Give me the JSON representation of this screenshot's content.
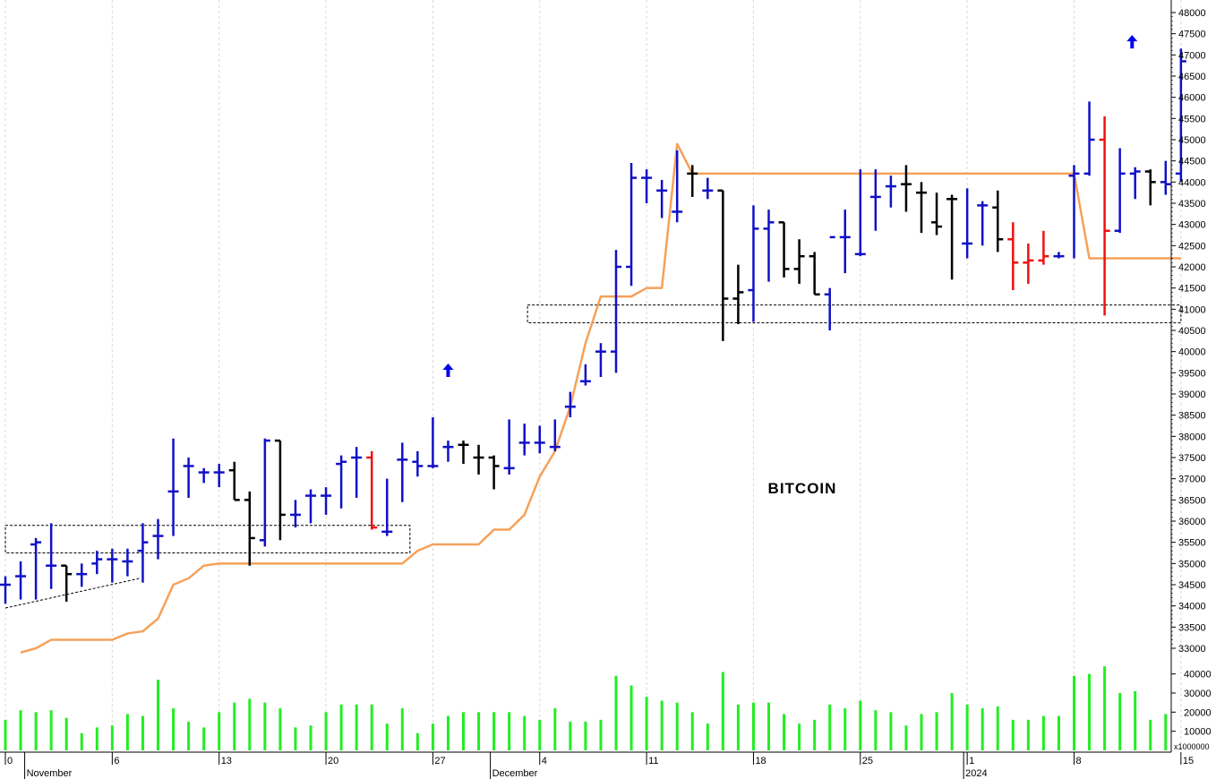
{
  "chart_data": {
    "type": "bar",
    "title": "BITCOIN",
    "ohlc_series_name": "",
    "price_axis": {
      "ylim": [
        32500,
        48000
      ],
      "ticks": [
        33000,
        33500,
        34000,
        34500,
        35000,
        35500,
        36000,
        36500,
        37000,
        37500,
        38000,
        38500,
        39000,
        39500,
        40000,
        40500,
        41000,
        41500,
        42000,
        42500,
        43000,
        43500,
        44000,
        44500,
        45000,
        45500,
        46000,
        46500,
        47000,
        47500,
        48000
      ],
      "tick_labels": [
        "33000",
        "33500",
        "34000",
        "34500",
        "35000",
        "35500",
        "36000",
        "36500",
        "37000",
        "37500",
        "38000",
        "38500",
        "39000",
        "39500",
        "40000",
        "40500",
        "41000",
        "41500",
        "42000",
        "42500",
        "43000",
        "43500",
        "44000",
        "44500",
        "45000",
        "45500",
        "46000",
        "46500",
        "47000",
        "47500",
        "48000"
      ]
    },
    "volume_axis": {
      "ylim": [
        0,
        45000
      ],
      "ticks": [
        10000,
        20000,
        30000,
        40000
      ],
      "tick_labels": [
        "10000",
        "20000",
        "30000",
        "40000"
      ],
      "unit_label": "x1000000"
    },
    "x_axis": {
      "xlim": [
        0,
        77
      ],
      "ticks": [
        {
          "x": 0,
          "label": "0"
        },
        {
          "x": 7,
          "label": "6"
        },
        {
          "x": 14,
          "label": "13"
        },
        {
          "x": 21,
          "label": "20"
        },
        {
          "x": 28,
          "label": "27"
        },
        {
          "x": 35,
          "label": "4"
        },
        {
          "x": 42,
          "label": "11"
        },
        {
          "x": 49,
          "label": "18"
        },
        {
          "x": 56,
          "label": "25"
        },
        {
          "x": 63,
          "label": "1"
        },
        {
          "x": 70,
          "label": "8"
        },
        {
          "x": 77,
          "label": "15"
        }
      ],
      "month_labels": [
        {
          "x": 1.5,
          "label": "November"
        },
        {
          "x": 32,
          "label": "December"
        },
        {
          "x": 63,
          "label": "2024"
        }
      ]
    },
    "bars": [
      {
        "x": 0,
        "o": 34500,
        "h": 34700,
        "l": 34050,
        "c": 34500,
        "color": "blue",
        "vol": 16000
      },
      {
        "x": 1,
        "o": 34700,
        "h": 35050,
        "l": 34150,
        "c": 34700,
        "color": "blue",
        "vol": 21000
      },
      {
        "x": 2,
        "o": 35450,
        "h": 35600,
        "l": 34150,
        "c": 35500,
        "color": "blue",
        "vol": 20000
      },
      {
        "x": 3,
        "o": 34950,
        "h": 35950,
        "l": 34400,
        "c": 34950,
        "color": "blue",
        "vol": 21000
      },
      {
        "x": 4,
        "o": 34950,
        "h": 34950,
        "l": 34100,
        "c": 34750,
        "color": "black",
        "vol": 17000
      },
      {
        "x": 5,
        "o": 34750,
        "h": 35000,
        "l": 34450,
        "c": 34750,
        "color": "blue",
        "vol": 9000
      },
      {
        "x": 6,
        "o": 35000,
        "h": 35300,
        "l": 34750,
        "c": 35100,
        "color": "blue",
        "vol": 12000
      },
      {
        "x": 7,
        "o": 35100,
        "h": 35350,
        "l": 34550,
        "c": 35100,
        "color": "blue",
        "vol": 13000
      },
      {
        "x": 8,
        "o": 35050,
        "h": 35350,
        "l": 34700,
        "c": 35050,
        "color": "blue",
        "vol": 19000
      },
      {
        "x": 9,
        "o": 35300,
        "h": 35950,
        "l": 34550,
        "c": 35500,
        "color": "blue",
        "vol": 18000
      },
      {
        "x": 10,
        "o": 35650,
        "h": 36050,
        "l": 35100,
        "c": 35650,
        "color": "blue",
        "vol": 37000
      },
      {
        "x": 11,
        "o": 36700,
        "h": 37950,
        "l": 35650,
        "c": 36700,
        "color": "blue",
        "vol": 22000
      },
      {
        "x": 12,
        "o": 37300,
        "h": 37500,
        "l": 36550,
        "c": 37300,
        "color": "blue",
        "vol": 15000
      },
      {
        "x": 13,
        "o": 37150,
        "h": 37250,
        "l": 36900,
        "c": 37150,
        "color": "blue",
        "vol": 12000
      },
      {
        "x": 14,
        "o": 37150,
        "h": 37350,
        "l": 36800,
        "c": 37150,
        "color": "blue",
        "vol": 20000
      },
      {
        "x": 15,
        "o": 37200,
        "h": 37400,
        "l": 36500,
        "c": 36500,
        "color": "black",
        "vol": 25000
      },
      {
        "x": 16,
        "o": 36500,
        "h": 36700,
        "l": 34950,
        "c": 35600,
        "color": "black",
        "vol": 27000
      },
      {
        "x": 17,
        "o": 35550,
        "h": 37950,
        "l": 35400,
        "c": 37900,
        "color": "blue",
        "vol": 25000
      },
      {
        "x": 18,
        "o": 37900,
        "h": 37900,
        "l": 35550,
        "c": 36150,
        "color": "black",
        "vol": 22000
      },
      {
        "x": 19,
        "o": 36150,
        "h": 36500,
        "l": 35850,
        "c": 36150,
        "color": "blue",
        "vol": 12000
      },
      {
        "x": 20,
        "o": 36600,
        "h": 36750,
        "l": 35950,
        "c": 36600,
        "color": "blue",
        "vol": 13000
      },
      {
        "x": 21,
        "o": 36600,
        "h": 36800,
        "l": 36150,
        "c": 36600,
        "color": "blue",
        "vol": 20000
      },
      {
        "x": 22,
        "o": 37350,
        "h": 37550,
        "l": 36300,
        "c": 37400,
        "color": "blue",
        "vol": 24000
      },
      {
        "x": 23,
        "o": 37500,
        "h": 37750,
        "l": 36550,
        "c": 37500,
        "color": "blue",
        "vol": 24000
      },
      {
        "x": 24,
        "o": 37500,
        "h": 37650,
        "l": 35800,
        "c": 35850,
        "color": "red",
        "vol": 24000
      },
      {
        "x": 25,
        "o": 35750,
        "h": 37000,
        "l": 35650,
        "c": 35750,
        "color": "blue",
        "vol": 14000
      },
      {
        "x": 26,
        "o": 37450,
        "h": 37850,
        "l": 36450,
        "c": 37450,
        "color": "blue",
        "vol": 22000
      },
      {
        "x": 27,
        "o": 37400,
        "h": 37650,
        "l": 37050,
        "c": 37300,
        "color": "blue",
        "vol": 9000
      },
      {
        "x": 28,
        "o": 37300,
        "h": 38450,
        "l": 37250,
        "c": 37300,
        "color": "blue",
        "vol": 14000
      },
      {
        "x": 29,
        "o": 37750,
        "h": 37900,
        "l": 37400,
        "c": 37750,
        "color": "blue",
        "vol": 18000
      },
      {
        "x": 30,
        "o": 37800,
        "h": 37900,
        "l": 37350,
        "c": 37800,
        "color": "black",
        "vol": 20000
      },
      {
        "x": 31,
        "o": 37500,
        "h": 37800,
        "l": 37100,
        "c": 37500,
        "color": "black",
        "vol": 20000
      },
      {
        "x": 32,
        "o": 37500,
        "h": 37550,
        "l": 36750,
        "c": 37300,
        "color": "black",
        "vol": 20000
      },
      {
        "x": 33,
        "o": 37250,
        "h": 38400,
        "l": 37100,
        "c": 37250,
        "color": "blue",
        "vol": 20000
      },
      {
        "x": 34,
        "o": 37850,
        "h": 38300,
        "l": 37550,
        "c": 37850,
        "color": "blue",
        "vol": 18000
      },
      {
        "x": 35,
        "o": 37850,
        "h": 38250,
        "l": 37600,
        "c": 37850,
        "color": "blue",
        "vol": 16000
      },
      {
        "x": 36,
        "o": 37750,
        "h": 38400,
        "l": 37650,
        "c": 37750,
        "color": "blue",
        "vol": 22000
      },
      {
        "x": 37,
        "o": 38700,
        "h": 39050,
        "l": 38450,
        "c": 38700,
        "color": "blue",
        "vol": 15000
      },
      {
        "x": 38,
        "o": 39300,
        "h": 39700,
        "l": 39200,
        "c": 39300,
        "color": "blue",
        "vol": 15000
      },
      {
        "x": 39,
        "o": 40000,
        "h": 40200,
        "l": 39400,
        "c": 40000,
        "color": "blue",
        "vol": 16000
      },
      {
        "x": 40,
        "o": 40000,
        "h": 42400,
        "l": 39500,
        "c": 42000,
        "color": "blue",
        "vol": 39000
      },
      {
        "x": 41,
        "o": 42000,
        "h": 44450,
        "l": 41550,
        "c": 44100,
        "color": "blue",
        "vol": 34000
      },
      {
        "x": 42,
        "o": 44100,
        "h": 44300,
        "l": 43500,
        "c": 44100,
        "color": "blue",
        "vol": 28000
      },
      {
        "x": 43,
        "o": 43800,
        "h": 44050,
        "l": 43150,
        "c": 43800,
        "color": "blue",
        "vol": 26000
      },
      {
        "x": 44,
        "o": 43300,
        "h": 44750,
        "l": 43050,
        "c": 43300,
        "color": "blue",
        "vol": 25000
      },
      {
        "x": 45,
        "o": 44200,
        "h": 44400,
        "l": 43650,
        "c": 44200,
        "color": "black",
        "vol": 20000
      },
      {
        "x": 46,
        "o": 43800,
        "h": 44100,
        "l": 43600,
        "c": 43800,
        "color": "blue",
        "vol": 14000
      },
      {
        "x": 47,
        "o": 43800,
        "h": 43800,
        "l": 40250,
        "c": 41250,
        "color": "black",
        "vol": 41000
      },
      {
        "x": 48,
        "o": 41250,
        "h": 42050,
        "l": 40650,
        "c": 41400,
        "color": "black",
        "vol": 24000
      },
      {
        "x": 49,
        "o": 41450,
        "h": 43450,
        "l": 40700,
        "c": 42900,
        "color": "blue",
        "vol": 25000
      },
      {
        "x": 50,
        "o": 42900,
        "h": 43350,
        "l": 41650,
        "c": 43050,
        "color": "blue",
        "vol": 25000
      },
      {
        "x": 51,
        "o": 43050,
        "h": 43050,
        "l": 41750,
        "c": 41950,
        "color": "black",
        "vol": 19000
      },
      {
        "x": 52,
        "o": 41950,
        "h": 42650,
        "l": 41600,
        "c": 42250,
        "color": "black",
        "vol": 14000
      },
      {
        "x": 53,
        "o": 42250,
        "h": 42350,
        "l": 41350,
        "c": 41350,
        "color": "black",
        "vol": 16000
      },
      {
        "x": 54,
        "o": 41350,
        "h": 41500,
        "l": 40500,
        "c": 42700,
        "color": "blue",
        "vol": 24000
      },
      {
        "x": 55,
        "o": 42700,
        "h": 43350,
        "l": 41850,
        "c": 42700,
        "color": "blue",
        "vol": 22000
      },
      {
        "x": 56,
        "o": 42300,
        "h": 44300,
        "l": 42250,
        "c": 42300,
        "color": "blue",
        "vol": 26000
      },
      {
        "x": 57,
        "o": 43650,
        "h": 44300,
        "l": 42850,
        "c": 43650,
        "color": "blue",
        "vol": 21000
      },
      {
        "x": 58,
        "o": 43900,
        "h": 44150,
        "l": 43400,
        "c": 43900,
        "color": "blue",
        "vol": 20000
      },
      {
        "x": 59,
        "o": 43950,
        "h": 44400,
        "l": 43300,
        "c": 43950,
        "color": "black",
        "vol": 13000
      },
      {
        "x": 60,
        "o": 43750,
        "h": 44000,
        "l": 42800,
        "c": 43750,
        "color": "black",
        "vol": 19000
      },
      {
        "x": 61,
        "o": 43050,
        "h": 43750,
        "l": 42750,
        "c": 42950,
        "color": "black",
        "vol": 20000
      },
      {
        "x": 62,
        "o": 43600,
        "h": 43700,
        "l": 41700,
        "c": 43600,
        "color": "black",
        "vol": 30000
      },
      {
        "x": 63,
        "o": 42550,
        "h": 43850,
        "l": 42200,
        "c": 42550,
        "color": "blue",
        "vol": 24000
      },
      {
        "x": 64,
        "o": 43450,
        "h": 43550,
        "l": 42500,
        "c": 43450,
        "color": "blue",
        "vol": 22000
      },
      {
        "x": 65,
        "o": 43400,
        "h": 43800,
        "l": 42350,
        "c": 42650,
        "color": "black",
        "vol": 23000
      },
      {
        "x": 66,
        "o": 42650,
        "h": 43050,
        "l": 41450,
        "c": 42100,
        "color": "red",
        "vol": 16000
      },
      {
        "x": 67,
        "o": 42100,
        "h": 42550,
        "l": 41600,
        "c": 42150,
        "color": "red",
        "vol": 16000
      },
      {
        "x": 68,
        "o": 42150,
        "h": 42850,
        "l": 42050,
        "c": 42250,
        "color": "red",
        "vol": 18000
      },
      {
        "x": 69,
        "o": 42250,
        "h": 42350,
        "l": 42200,
        "c": 42250,
        "color": "blue",
        "vol": 18000
      },
      {
        "x": 70,
        "o": 44150,
        "h": 44400,
        "l": 42200,
        "c": 44200,
        "color": "blue",
        "vol": 39000
      },
      {
        "x": 71,
        "o": 44200,
        "h": 45900,
        "l": 44150,
        "c": 45000,
        "color": "blue",
        "vol": 40000
      },
      {
        "x": 72,
        "o": 45000,
        "h": 45550,
        "l": 40850,
        "c": 42850,
        "color": "red",
        "vol": 44000
      },
      {
        "x": 73,
        "o": 42850,
        "h": 44800,
        "l": 42800,
        "c": 44200,
        "color": "blue",
        "vol": 30000
      },
      {
        "x": 74,
        "o": 44200,
        "h": 44350,
        "l": 43600,
        "c": 44250,
        "color": "blue",
        "vol": 31000
      },
      {
        "x": 75,
        "o": 44250,
        "h": 44300,
        "l": 43450,
        "c": 44000,
        "color": "black",
        "vol": 16000
      },
      {
        "x": 76,
        "o": 44000,
        "h": 44500,
        "l": 43700,
        "c": 43950,
        "color": "blue",
        "vol": 19000
      },
      {
        "x": 77,
        "o": 44200,
        "h": 47150,
        "l": 44000,
        "c": 46850,
        "color": "blue",
        "vol": 0
      }
    ],
    "trailing_stop": {
      "color": "#f5a15a",
      "points": [
        [
          1,
          32900
        ],
        [
          2,
          33000
        ],
        [
          3,
          33200
        ],
        [
          4,
          33200
        ],
        [
          5,
          33200
        ],
        [
          6,
          33200
        ],
        [
          7,
          33200
        ],
        [
          8,
          33350
        ],
        [
          9,
          33400
        ],
        [
          10,
          33700
        ],
        [
          11,
          34500
        ],
        [
          12,
          34650
        ],
        [
          13,
          34950
        ],
        [
          14,
          35000
        ],
        [
          15,
          35000
        ],
        [
          16,
          35000
        ],
        [
          17,
          35000
        ],
        [
          18,
          35000
        ],
        [
          19,
          35000
        ],
        [
          20,
          35000
        ],
        [
          21,
          35000
        ],
        [
          22,
          35000
        ],
        [
          23,
          35000
        ],
        [
          24,
          35000
        ],
        [
          25,
          35000
        ],
        [
          26,
          35000
        ],
        [
          27,
          35300
        ],
        [
          28,
          35450
        ],
        [
          29,
          35450
        ],
        [
          30,
          35450
        ],
        [
          31,
          35450
        ],
        [
          32,
          35800
        ],
        [
          33,
          35800
        ],
        [
          34,
          36150
        ],
        [
          35,
          37050
        ],
        [
          36,
          37650
        ],
        [
          37,
          38700
        ],
        [
          38,
          40200
        ],
        [
          39,
          41300
        ],
        [
          40,
          41300
        ],
        [
          41,
          41300
        ],
        [
          42,
          41500
        ],
        [
          43,
          41500
        ],
        [
          44,
          44900
        ],
        [
          45,
          44200
        ],
        [
          46,
          44200
        ],
        [
          47,
          44200
        ],
        [
          48,
          44200
        ],
        [
          49,
          44200
        ],
        [
          50,
          44200
        ],
        [
          51,
          44200
        ],
        [
          52,
          44200
        ],
        [
          53,
          44200
        ],
        [
          54,
          44200
        ],
        [
          55,
          44200
        ],
        [
          56,
          44200
        ],
        [
          57,
          44200
        ],
        [
          58,
          44200
        ],
        [
          59,
          44200
        ],
        [
          60,
          44200
        ],
        [
          61,
          44200
        ],
        [
          62,
          44200
        ],
        [
          63,
          44200
        ],
        [
          64,
          44200
        ],
        [
          65,
          44200
        ],
        [
          66,
          44200
        ],
        [
          67,
          44200
        ],
        [
          68,
          44200
        ],
        [
          69,
          44200
        ],
        [
          70,
          44200
        ],
        [
          71,
          42200
        ],
        [
          72,
          42200
        ],
        [
          73,
          42200
        ],
        [
          74,
          42200
        ],
        [
          75,
          42200
        ],
        [
          76,
          42200
        ],
        [
          77,
          42200
        ]
      ]
    },
    "boxes": [
      {
        "x0": 0,
        "x1": 26.5,
        "y0": 35250,
        "y1": 35900
      },
      {
        "x0": 34.2,
        "x1": 77,
        "y0": 40680,
        "y1": 41100
      }
    ],
    "trend_lines": [
      {
        "x0": 0,
        "y0": 33950,
        "x1": 8.8,
        "y1": 34650
      }
    ],
    "arrows": [
      {
        "x": 29,
        "y": 39550,
        "direction": "up",
        "color": "#0000ee"
      },
      {
        "x": 73.8,
        "y": 47300,
        "direction": "up",
        "color": "#0000ee"
      }
    ],
    "colors": {
      "blue": "#1010c8",
      "black": "#000000",
      "red": "#ee1111",
      "volume": "#22ee22",
      "grid": "#d8d8d8"
    },
    "grid": true,
    "legend": "none"
  }
}
